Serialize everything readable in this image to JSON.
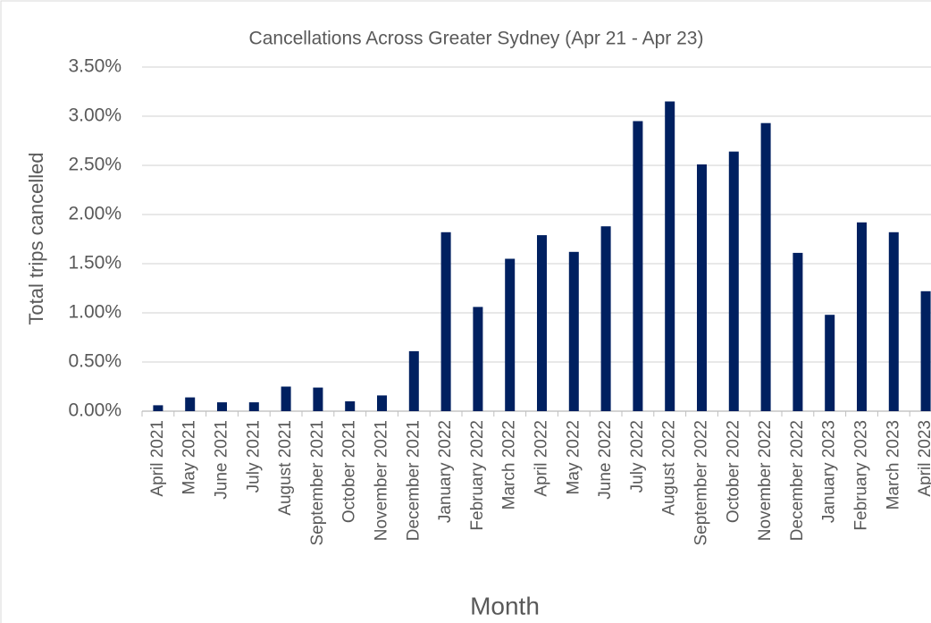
{
  "chart_data": {
    "type": "bar",
    "title": "Cancellations Across Greater Sydney (Apr 21 - Apr 23)",
    "x_label": "Month",
    "y_label": "Total trips cancelled",
    "categories": [
      "April 2021",
      "May 2021",
      "June 2021",
      "July 2021",
      "August 2021",
      "September 2021",
      "October 2021",
      "November 2021",
      "December 2021",
      "January 2022",
      "February 2022",
      "March 2022",
      "April 2022",
      "May 2022",
      "June 2022",
      "July 2022",
      "August 2022",
      "September 2022",
      "October 2022",
      "November 2022",
      "December 2022",
      "January 2023",
      "February 2023",
      "March 2023",
      "April 2023"
    ],
    "values": [
      0.06,
      0.14,
      0.09,
      0.09,
      0.25,
      0.24,
      0.1,
      0.16,
      0.61,
      1.82,
      1.06,
      1.55,
      1.79,
      1.62,
      1.88,
      2.95,
      3.15,
      2.51,
      2.64,
      2.93,
      1.61,
      0.98,
      1.92,
      1.82,
      1.22
    ],
    "color": "#002060",
    "ylim": [
      0,
      3.5
    ],
    "yticks": [
      {
        "value": 0,
        "label": "0.00%"
      },
      {
        "value": 0.5,
        "label": "0.50%"
      },
      {
        "value": 1,
        "label": "1.00%"
      },
      {
        "value": 1.5,
        "label": "1.50%"
      },
      {
        "value": 2,
        "label": "2.00%"
      },
      {
        "value": 2.5,
        "label": "2.50%"
      },
      {
        "value": 3,
        "label": "3.00%"
      },
      {
        "value": 3.5,
        "label": "3.50%"
      }
    ],
    "grid": true
  }
}
